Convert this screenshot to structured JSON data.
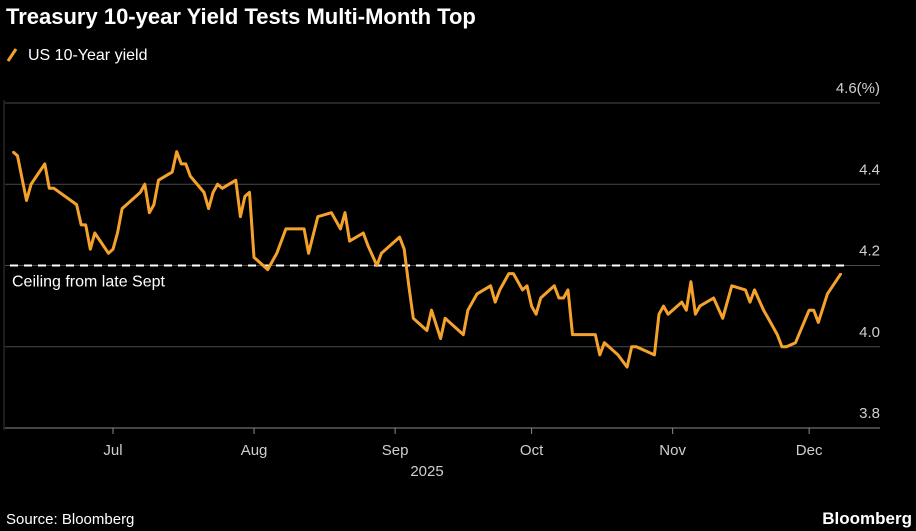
{
  "chart_data": {
    "type": "line",
    "title": "Treasury 10-year Yield Tests Multi-Month Top",
    "source": "Source: Bloomberg",
    "brand": "Bloomberg",
    "xlabel": "2025",
    "ylabel": "",
    "unit_label": "(%)",
    "ylim": [
      3.8,
      4.6
    ],
    "y_ticks": [
      3.8,
      4.0,
      4.2,
      4.4,
      4.6
    ],
    "y_tick_labels": [
      "3.8",
      "4.0",
      "4.2",
      "4.4",
      "4.6(%)"
    ],
    "x_ticks": [
      "2025-07-01",
      "2025-08-01",
      "2025-09-01",
      "2025-10-01",
      "2025-11-01",
      "2025-12-01"
    ],
    "x_tick_labels": [
      "Jul",
      "Aug",
      "Sep",
      "Oct",
      "Nov",
      "Dec"
    ],
    "grid": true,
    "legend_position": "top-left",
    "annotation": {
      "label": "Ceiling from late Sept",
      "value": 4.2,
      "style": "dashed",
      "color": "#ffffff"
    },
    "series": [
      {
        "name": "US 10-Year yield",
        "color": "#f5a22d",
        "x": [
          "2025-06-09",
          "2025-06-10",
          "2025-06-12",
          "2025-06-13",
          "2025-06-16",
          "2025-06-17",
          "2025-06-18",
          "2025-06-23",
          "2025-06-24",
          "2025-06-25",
          "2025-06-26",
          "2025-06-27",
          "2025-06-30",
          "2025-07-01",
          "2025-07-02",
          "2025-07-03",
          "2025-07-07",
          "2025-07-08",
          "2025-07-09",
          "2025-07-10",
          "2025-07-11",
          "2025-07-14",
          "2025-07-15",
          "2025-07-16",
          "2025-07-17",
          "2025-07-18",
          "2025-07-21",
          "2025-07-22",
          "2025-07-23",
          "2025-07-24",
          "2025-07-25",
          "2025-07-28",
          "2025-07-29",
          "2025-07-30",
          "2025-07-31",
          "2025-08-01",
          "2025-08-02",
          "2025-08-04",
          "2025-08-06",
          "2025-08-08",
          "2025-08-12",
          "2025-08-13",
          "2025-08-15",
          "2025-08-18",
          "2025-08-20",
          "2025-08-21",
          "2025-08-22",
          "2025-08-25",
          "2025-08-26",
          "2025-08-28",
          "2025-08-29",
          "2025-09-02",
          "2025-09-03",
          "2025-09-04",
          "2025-09-05",
          "2025-09-06",
          "2025-09-08",
          "2025-09-09",
          "2025-09-11",
          "2025-09-12",
          "2025-09-16",
          "2025-09-17",
          "2025-09-19",
          "2025-09-22",
          "2025-09-23",
          "2025-09-24",
          "2025-09-26",
          "2025-09-27",
          "2025-09-29",
          "2025-09-30",
          "2025-10-01",
          "2025-10-02",
          "2025-10-03",
          "2025-10-06",
          "2025-10-07",
          "2025-10-08",
          "2025-10-09",
          "2025-10-10",
          "2025-10-14",
          "2025-10-15",
          "2025-10-16",
          "2025-10-17",
          "2025-10-20",
          "2025-10-22",
          "2025-10-23",
          "2025-10-24",
          "2025-10-28",
          "2025-10-29",
          "2025-10-30",
          "2025-10-31",
          "2025-11-03",
          "2025-11-04",
          "2025-11-05",
          "2025-11-06",
          "2025-11-07",
          "2025-11-10",
          "2025-11-12",
          "2025-11-14",
          "2025-11-17",
          "2025-11-18",
          "2025-11-19",
          "2025-11-21",
          "2025-11-22",
          "2025-11-24",
          "2025-11-25",
          "2025-11-26",
          "2025-11-28",
          "2025-12-01",
          "2025-12-02",
          "2025-12-03",
          "2025-12-05",
          "2025-12-08"
        ],
        "values": [
          4.48,
          4.47,
          4.36,
          4.4,
          4.45,
          4.39,
          4.39,
          4.35,
          4.3,
          4.3,
          4.24,
          4.28,
          4.23,
          4.24,
          4.28,
          4.34,
          4.38,
          4.4,
          4.33,
          4.35,
          4.41,
          4.43,
          4.48,
          4.45,
          4.45,
          4.42,
          4.38,
          4.34,
          4.38,
          4.4,
          4.39,
          4.41,
          4.32,
          4.37,
          4.38,
          4.22,
          4.21,
          4.19,
          4.23,
          4.29,
          4.29,
          4.23,
          4.32,
          4.33,
          4.29,
          4.33,
          4.26,
          4.28,
          4.25,
          4.2,
          4.23,
          4.27,
          4.24,
          4.15,
          4.07,
          4.06,
          4.04,
          4.09,
          4.02,
          4.07,
          4.03,
          4.09,
          4.13,
          4.15,
          4.11,
          4.14,
          4.18,
          4.18,
          4.14,
          4.15,
          4.1,
          4.08,
          4.12,
          4.15,
          4.12,
          4.12,
          4.14,
          4.03,
          4.03,
          4.03,
          3.98,
          4.01,
          3.98,
          3.95,
          4.0,
          4.0,
          3.98,
          4.08,
          4.1,
          4.08,
          4.11,
          4.09,
          4.16,
          4.08,
          4.1,
          4.12,
          4.07,
          4.15,
          4.14,
          4.11,
          4.14,
          4.09,
          4.07,
          4.03,
          4.0,
          4.0,
          4.01,
          4.09,
          4.09,
          4.06,
          4.13,
          4.18
        ]
      }
    ]
  }
}
